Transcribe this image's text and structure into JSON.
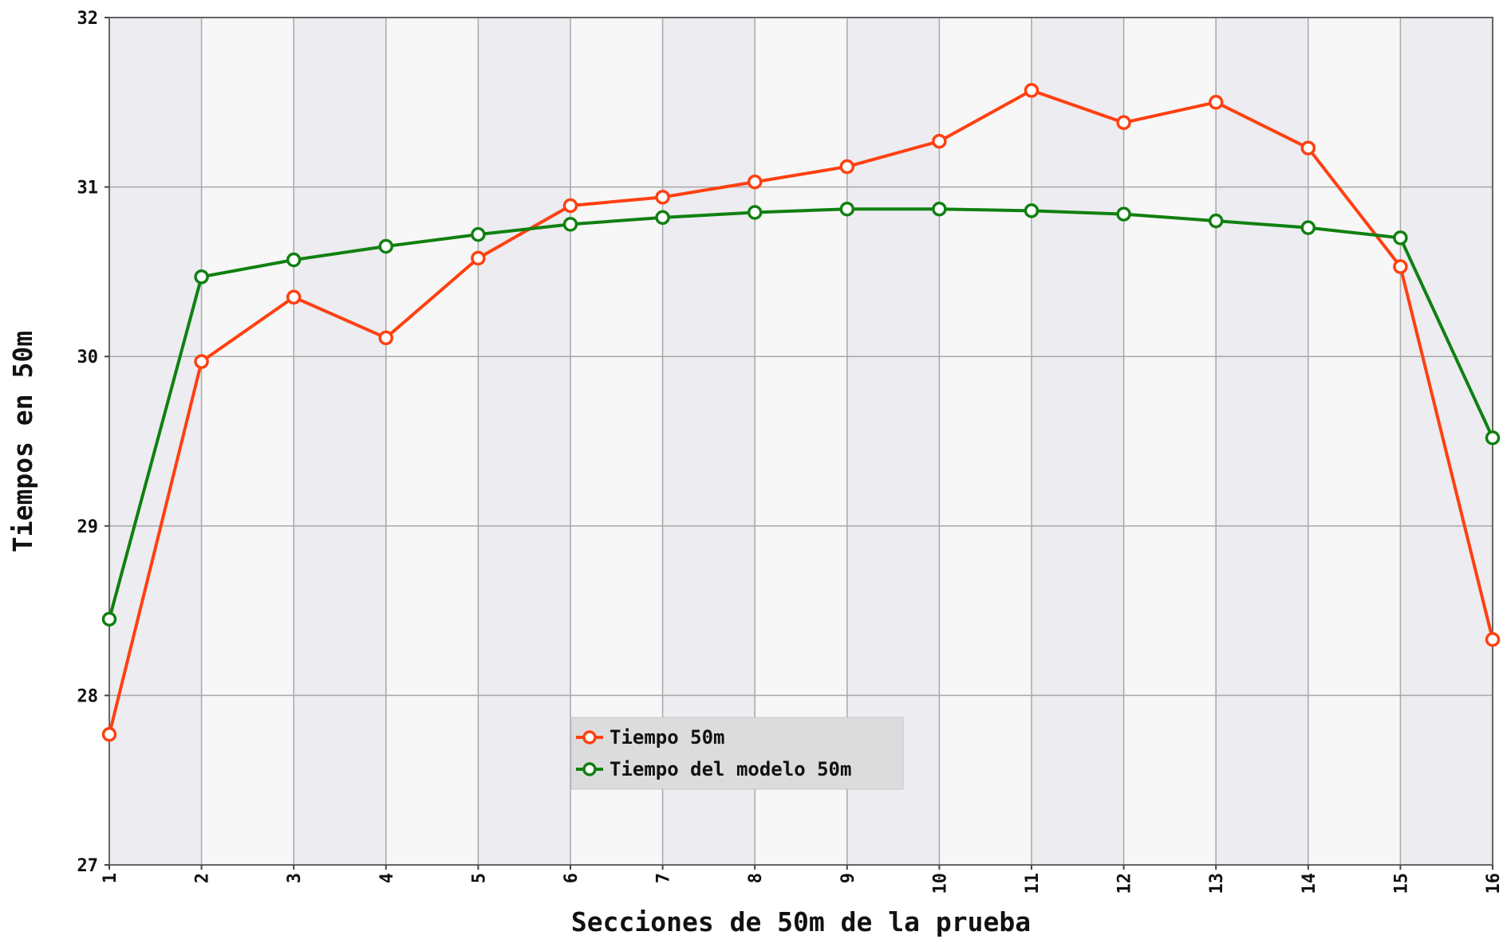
{
  "chart_data": {
    "type": "line",
    "x_label": "Secciones de 50m de la prueba",
    "y_label": "Tiempos en 50m",
    "x": [
      1,
      2,
      3,
      4,
      5,
      6,
      7,
      8,
      9,
      10,
      11,
      12,
      13,
      14,
      15,
      16
    ],
    "series": [
      {
        "name": "Tiempo 50m",
        "color": "#ff4010",
        "values": [
          27.77,
          29.97,
          30.35,
          30.11,
          30.58,
          30.89,
          30.94,
          31.03,
          31.12,
          31.27,
          31.57,
          31.38,
          31.5,
          31.23,
          30.53,
          28.33
        ]
      },
      {
        "name": "Tiempo del modelo 50m",
        "color": "#108010",
        "values": [
          28.45,
          30.47,
          30.57,
          30.65,
          30.72,
          30.78,
          30.82,
          30.85,
          30.87,
          30.87,
          30.86,
          30.84,
          30.8,
          30.76,
          30.7,
          29.52
        ]
      }
    ],
    "xlim": [
      1,
      16
    ],
    "xticks": [
      1,
      2,
      3,
      4,
      5,
      6,
      7,
      8,
      9,
      10,
      11,
      12,
      13,
      14,
      15,
      16
    ],
    "ylim": [
      27,
      32
    ],
    "yticks": [
      27,
      28,
      29,
      30,
      31,
      32
    ],
    "grid": true,
    "legend": "lower center"
  }
}
